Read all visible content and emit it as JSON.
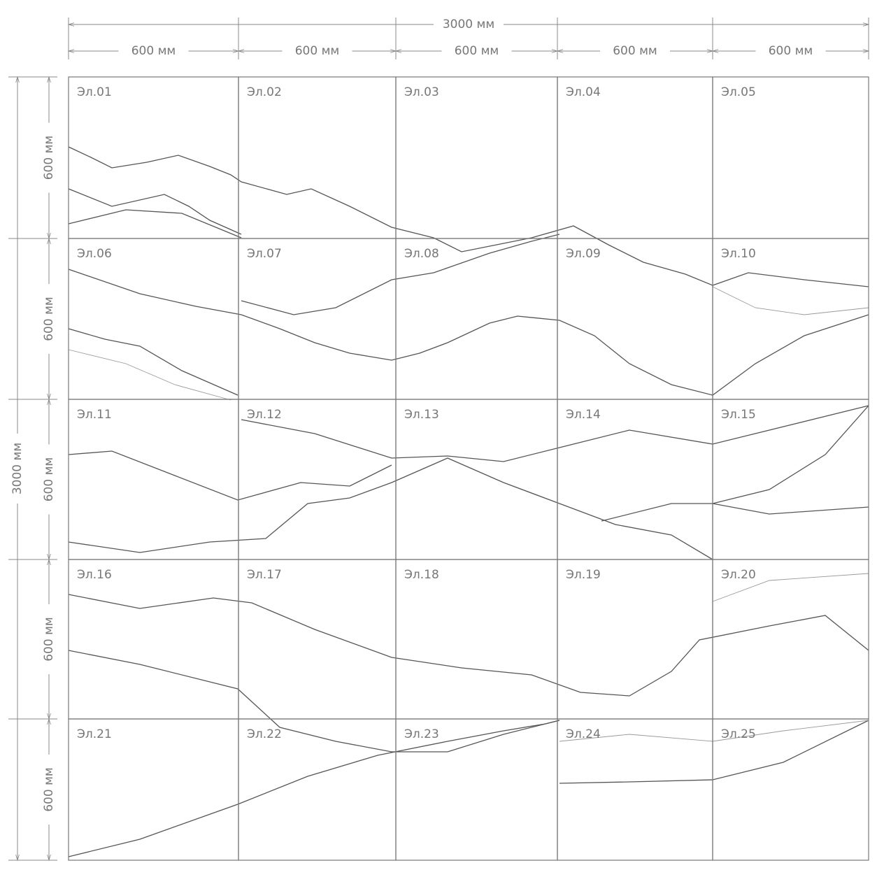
{
  "dimensions": {
    "total_width": "3000 мм",
    "total_height": "3000 мм",
    "columns": [
      "600 мм",
      "600 мм",
      "600 мм",
      "600 мм",
      "600 мм"
    ],
    "rows": [
      "600 мм",
      "600 мм",
      "600 мм",
      "600 мм",
      "600 мм"
    ]
  },
  "panels": [
    "Эл.01",
    "Эл.02",
    "Эл.03",
    "Эл.04",
    "Эл.05",
    "Эл.06",
    "Эл.07",
    "Эл.08",
    "Эл.09",
    "Эл.10",
    "Эл.11",
    "Эл.12",
    "Эл.13",
    "Эл.14",
    "Эл.15",
    "Эл.16",
    "Эл.17",
    "Эл.18",
    "Эл.19",
    "Эл.20",
    "Эл.21",
    "Эл.22",
    "Эл.23",
    "Эл.24",
    "Эл.25"
  ]
}
